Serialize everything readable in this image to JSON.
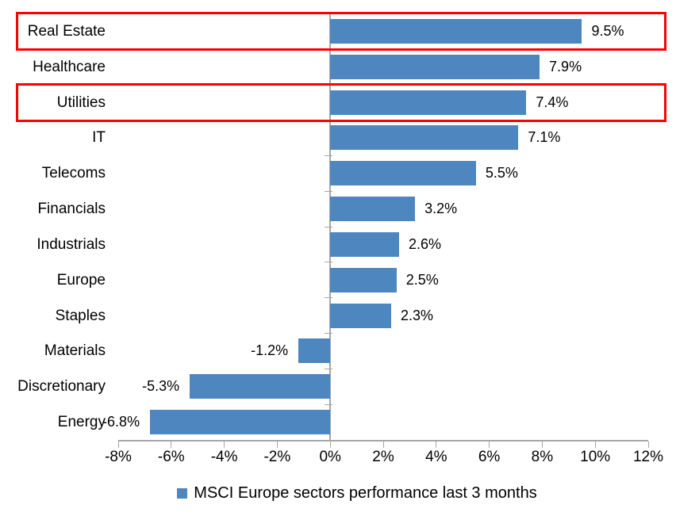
{
  "chart_data": {
    "type": "bar",
    "orientation": "horizontal",
    "categories": [
      "Real Estate",
      "Healthcare",
      "Utilities",
      "IT",
      "Telecoms",
      "Financials",
      "Industrials",
      "Europe",
      "Staples",
      "Materials",
      "Discretionary",
      "Energy"
    ],
    "values": [
      9.5,
      7.9,
      7.4,
      7.1,
      5.5,
      3.2,
      2.6,
      2.5,
      2.3,
      -1.2,
      -5.3,
      -6.8
    ],
    "data_labels": [
      "9.5%",
      "7.9%",
      "7.4%",
      "7.1%",
      "5.5%",
      "3.2%",
      "2.6%",
      "2.5%",
      "2.3%",
      "-1.2%",
      "-5.3%",
      "-6.8%"
    ],
    "highlighted_categories": [
      "Real Estate",
      "Utilities"
    ],
    "x_tick_labels": [
      "-8%",
      "-6%",
      "-4%",
      "-2%",
      "0%",
      "2%",
      "4%",
      "6%",
      "8%",
      "10%",
      "12%"
    ],
    "x_tick_values": [
      -8,
      -6,
      -4,
      -2,
      0,
      2,
      4,
      6,
      8,
      10,
      12
    ],
    "xlim": [
      -8,
      12
    ],
    "grid": false,
    "legend": {
      "label": "MSCI Europe sectors performance last 3 months",
      "position": "bottom"
    },
    "colors": {
      "bar": "#4e86bf",
      "legend_marker": "#4e86bf",
      "highlight_box": "#ff0000",
      "axis": "#a6a6a6",
      "text": "#000000"
    }
  }
}
